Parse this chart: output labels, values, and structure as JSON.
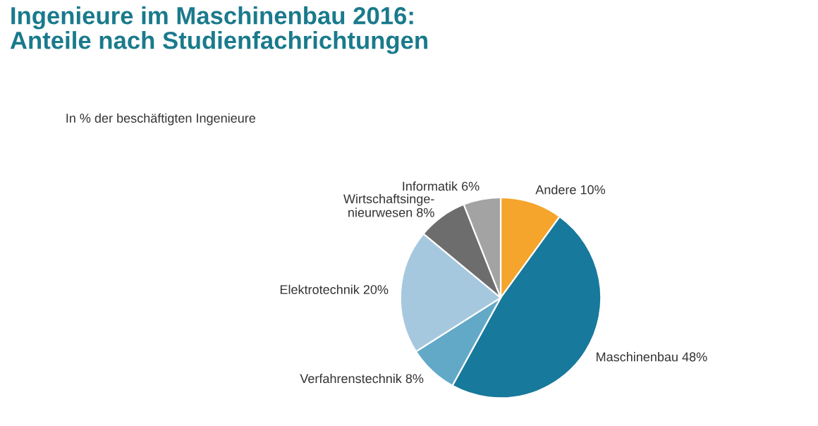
{
  "chart_data": {
    "type": "pie",
    "title": "Ingenieure im Maschinenbau 2016:\nAnteile nach Studienfachrichtungen",
    "subtitle": "In % der beschäftigten Ingenieure",
    "categories": [
      "Andere",
      "Maschinenbau",
      "Verfahrenstechnik",
      "Elektrotechnik",
      "Wirtschaftsinge-\nnieurwesen",
      "Informatik"
    ],
    "values": [
      10,
      48,
      8,
      20,
      8,
      6
    ],
    "value_labels": [
      "10%",
      "48%",
      "8%",
      "20%",
      "8%",
      "6%"
    ],
    "colors": [
      "#f5a42c",
      "#17799b",
      "#62a9c7",
      "#a6c8df",
      "#6d6d6d",
      "#a3a3a3"
    ],
    "legend": false
  }
}
